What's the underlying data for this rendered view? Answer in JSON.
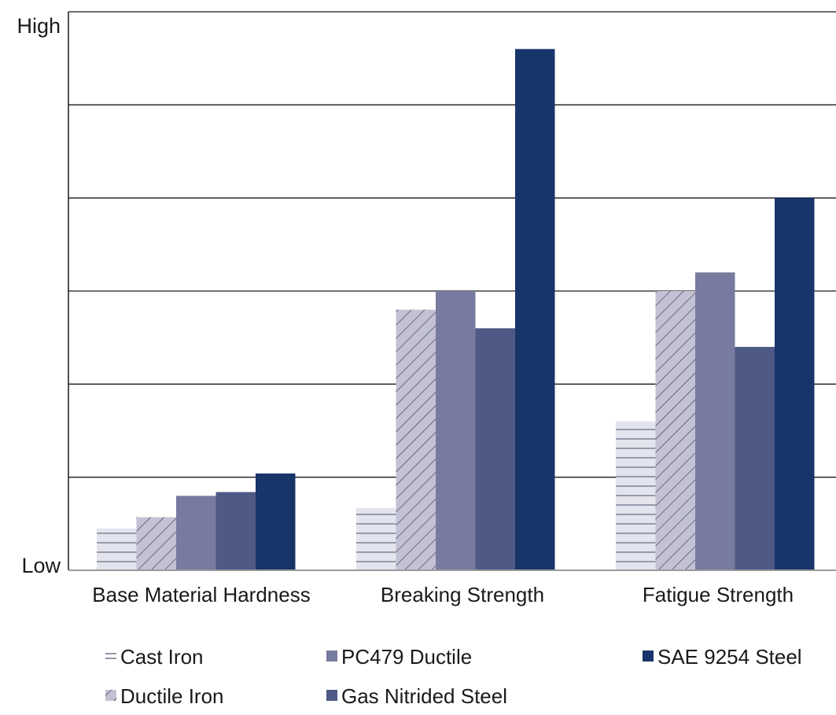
{
  "chart_data": {
    "type": "bar",
    "title": "",
    "xlabel": "",
    "ylabel": "",
    "y_tick_labels": {
      "top": "High",
      "bottom": "Low"
    },
    "ylim": [
      0,
      6
    ],
    "grid": true,
    "legend_position": "bottom",
    "categories": [
      "Base Material Hardness",
      "Breaking Strength",
      "Fatigue Strength"
    ],
    "series": [
      {
        "name": "Cast Iron",
        "values": [
          0.45,
          0.67,
          1.6
        ],
        "color": "#e4e4ee",
        "pattern": "horizontal-lines"
      },
      {
        "name": "Ductile Iron",
        "values": [
          0.57,
          2.8,
          3.0
        ],
        "color": "#c3c2d5",
        "pattern": "diagonal-hatch"
      },
      {
        "name": "PC479 Ductile",
        "values": [
          0.8,
          3.0,
          3.2
        ],
        "color": "#777b9f",
        "pattern": "solid"
      },
      {
        "name": "Gas Nitrided Steel",
        "values": [
          0.84,
          2.6,
          2.4
        ],
        "color": "#4e5a85",
        "pattern": "solid"
      },
      {
        "name": "SAE 9254 Steel",
        "values": [
          1.04,
          5.6,
          4.0
        ],
        "color": "#18356a",
        "pattern": "solid"
      }
    ]
  }
}
